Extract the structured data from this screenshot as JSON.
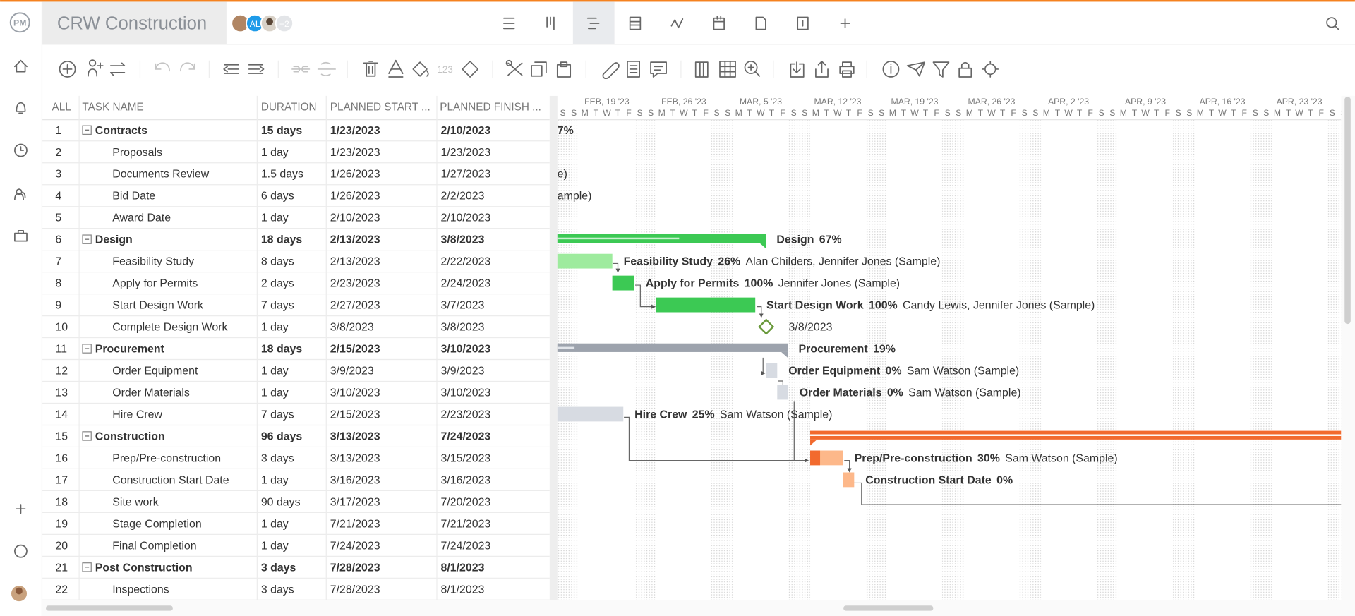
{
  "header": {
    "logo": "PM",
    "project_title": "CRW Construction",
    "avatars": [
      "AL"
    ],
    "more_members": "+2"
  },
  "toolbar": {
    "number_format": "123"
  },
  "table": {
    "columns": [
      "ALL",
      "TASK NAME",
      "DURATION",
      "PLANNED START ...",
      "PLANNED FINISH ..."
    ],
    "rows": [
      {
        "id": 1,
        "name": "Contracts",
        "duration": "15 days",
        "start": "1/23/2023",
        "finish": "2/10/2023",
        "summary": true,
        "bar_label": {
          "clipped": "7%"
        }
      },
      {
        "id": 2,
        "name": "Proposals",
        "duration": "1 day",
        "start": "1/23/2023",
        "finish": "1/23/2023"
      },
      {
        "id": 3,
        "name": "Documents Review",
        "duration": "1.5 days",
        "start": "1/26/2023",
        "finish": "1/27/2023",
        "bar_label": {
          "clipped": "e)"
        }
      },
      {
        "id": 4,
        "name": "Bid Date",
        "duration": "6 days",
        "start": "1/26/2023",
        "finish": "2/2/2023",
        "bar_label": {
          "clipped": "ample)"
        }
      },
      {
        "id": 5,
        "name": "Award Date",
        "duration": "1 day",
        "start": "2/10/2023",
        "finish": "2/10/2023"
      },
      {
        "id": 6,
        "name": "Design",
        "duration": "18 days",
        "start": "2/13/2023",
        "finish": "3/8/2023",
        "summary": true,
        "bar_label": {
          "name": "Design",
          "percent": "67%"
        }
      },
      {
        "id": 7,
        "name": "Feasibility Study",
        "duration": "8 days",
        "start": "2/13/2023",
        "finish": "2/22/2023",
        "bar_label": {
          "name": "Feasibility Study",
          "percent": "26%",
          "resources": "Alan Childers, Jennifer Jones (Sample)"
        }
      },
      {
        "id": 8,
        "name": "Apply for Permits",
        "duration": "2 days",
        "start": "2/23/2023",
        "finish": "2/24/2023",
        "bar_label": {
          "name": "Apply for Permits",
          "percent": "100%",
          "resources": "Jennifer Jones (Sample)"
        }
      },
      {
        "id": 9,
        "name": "Start Design Work",
        "duration": "7 days",
        "start": "2/27/2023",
        "finish": "3/7/2023",
        "bar_label": {
          "name": "Start Design Work",
          "percent": "100%",
          "resources": "Candy Lewis, Jennifer Jones (Sample)"
        }
      },
      {
        "id": 10,
        "name": "Complete Design Work",
        "duration": "1 day",
        "start": "3/8/2023",
        "finish": "3/8/2023",
        "bar_label": {
          "date": "3/8/2023"
        }
      },
      {
        "id": 11,
        "name": "Procurement",
        "duration": "18 days",
        "start": "2/15/2023",
        "finish": "3/10/2023",
        "summary": true,
        "bar_label": {
          "name": "Procurement",
          "percent": "19%"
        }
      },
      {
        "id": 12,
        "name": "Order Equipment",
        "duration": "1 day",
        "start": "3/9/2023",
        "finish": "3/9/2023",
        "bar_label": {
          "name": "Order Equipment",
          "percent": "0%",
          "resources": "Sam Watson (Sample)"
        }
      },
      {
        "id": 13,
        "name": "Order Materials",
        "duration": "1 day",
        "start": "3/10/2023",
        "finish": "3/10/2023",
        "bar_label": {
          "name": "Order Materials",
          "percent": "0%",
          "resources": "Sam Watson (Sample)"
        }
      },
      {
        "id": 14,
        "name": "Hire Crew",
        "duration": "7 days",
        "start": "2/15/2023",
        "finish": "2/23/2023",
        "bar_label": {
          "name": "Hire Crew",
          "percent": "25%",
          "resources": "Sam Watson (Sample)"
        }
      },
      {
        "id": 15,
        "name": "Construction",
        "duration": "96 days",
        "start": "3/13/2023",
        "finish": "7/24/2023",
        "summary": true
      },
      {
        "id": 16,
        "name": "Prep/Pre-construction",
        "duration": "3 days",
        "start": "3/13/2023",
        "finish": "3/15/2023",
        "bar_label": {
          "name": "Prep/Pre-construction",
          "percent": "30%",
          "resources": "Sam Watson (Sample)"
        }
      },
      {
        "id": 17,
        "name": "Construction Start Date",
        "duration": "1 day",
        "start": "3/16/2023",
        "finish": "3/16/2023",
        "bar_label": {
          "name": "Construction Start Date",
          "percent": "0%"
        }
      },
      {
        "id": 18,
        "name": "Site work",
        "duration": "90 days",
        "start": "3/17/2023",
        "finish": "7/20/2023"
      },
      {
        "id": 19,
        "name": "Stage Completion",
        "duration": "1 day",
        "start": "7/21/2023",
        "finish": "7/21/2023"
      },
      {
        "id": 20,
        "name": "Final Completion",
        "duration": "1 day",
        "start": "7/24/2023",
        "finish": "7/24/2023"
      },
      {
        "id": 21,
        "name": "Post Construction",
        "duration": "3 days",
        "start": "7/28/2023",
        "finish": "8/1/2023",
        "summary": true
      },
      {
        "id": 22,
        "name": "Inspections",
        "duration": "3 days",
        "start": "7/28/2023",
        "finish": "8/1/2023"
      }
    ]
  },
  "gantt": {
    "weeks": [
      "FEB, 19 '23",
      "FEB, 26 '23",
      "MAR, 5 '23",
      "MAR, 12 '23",
      "MAR, 19 '23",
      "MAR, 26 '23",
      "APR, 2 '23",
      "APR, 9 '23",
      "APR, 16 '23",
      "APR, 23 '23"
    ],
    "day_letters": [
      "S",
      "S",
      "M",
      "T",
      "W",
      "T",
      "F"
    ]
  }
}
